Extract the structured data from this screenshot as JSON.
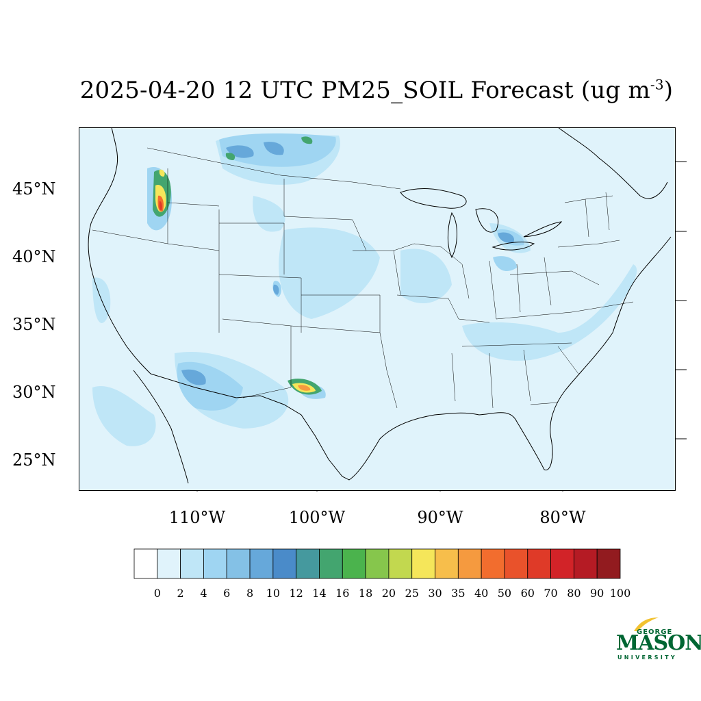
{
  "map": {
    "title_main": "2025-04-20 12 UTC PM25_SOIL Forecast (ug m",
    "title_exp": "-3",
    "title_end": ")",
    "lat_labels": [
      "45°N",
      "40°N",
      "35°N",
      "30°N",
      "25°N"
    ],
    "lon_labels": [
      "110°W",
      "100°W",
      "90°W",
      "80°W"
    ],
    "background_color": "#e0f3fb",
    "colorbar": {
      "labels": [
        "0",
        "2",
        "4",
        "6",
        "8",
        "10",
        "12",
        "14",
        "16",
        "18",
        "20",
        "25",
        "30",
        "35",
        "40",
        "50",
        "60",
        "70",
        "80",
        "90",
        "100"
      ],
      "colors": [
        "#ffffff",
        "#e0f3fb",
        "#bfe6f7",
        "#9fd5f2",
        "#84c1e6",
        "#66a8da",
        "#4a8bc9",
        "#45999e",
        "#43a56f",
        "#4bb34d",
        "#86c64c",
        "#c2d84f",
        "#f5e65a",
        "#f7be4b",
        "#f59a3f",
        "#f26d2e",
        "#e9522b",
        "#df3a28",
        "#d22328",
        "#b51b24",
        "#921b1f"
      ]
    }
  },
  "logo": {
    "line1": "GEORGE",
    "line2": "MASON",
    "line3": "UNIVERSITY",
    "color": "#006633",
    "accent": "#f2c231"
  }
}
